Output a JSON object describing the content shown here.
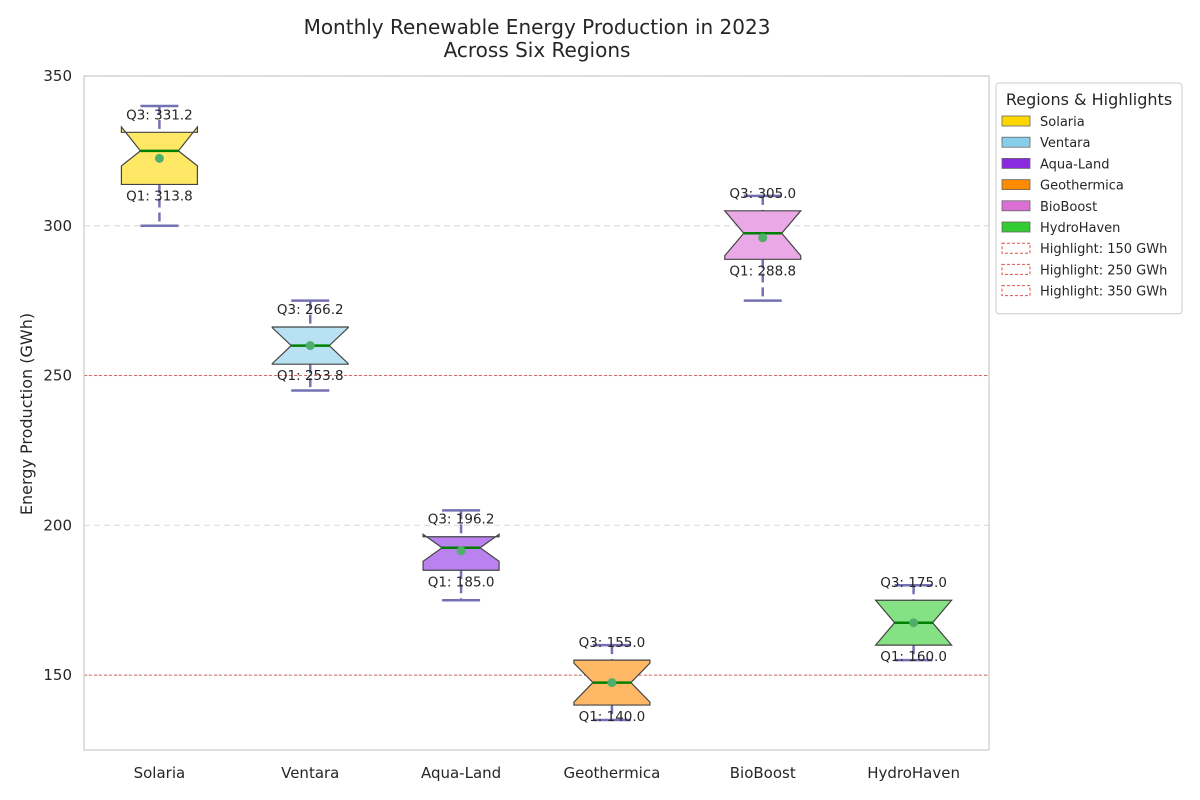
{
  "chart_data": {
    "type": "box",
    "title_line1": "Monthly Renewable Energy Production in 2023",
    "title_line2": "Across Six Regions",
    "xlabel": "",
    "ylabel": "Energy Production (GWh)",
    "ylim": [
      125,
      350
    ],
    "yticks": [
      "150",
      "200",
      "250",
      "300",
      "350"
    ],
    "ytick_values": [
      150,
      200,
      250,
      300,
      350
    ],
    "grid": true,
    "highlight_lines": [
      150,
      250,
      350
    ],
    "categories": [
      "Solaria",
      "Ventara",
      "Aqua-Land",
      "Geothermica",
      "BioBoost",
      "HydroHaven"
    ],
    "boxes": [
      {
        "name": "Solaria",
        "color": "#FFD700",
        "fill": "#FFE866",
        "whisker_low": 300,
        "q1": 313.8,
        "median": 325,
        "mean": 322.5,
        "q3": 331.2,
        "whisker_high": 340,
        "notch_low": 320,
        "notch_high": 333,
        "q1_label": "Q1: 313.8",
        "q3_label": "Q3: 331.2"
      },
      {
        "name": "Ventara",
        "color": "#87CEEB",
        "fill": "#B8E2F3",
        "whisker_low": 245,
        "q1": 253.8,
        "median": 260,
        "mean": 260,
        "q3": 266.2,
        "whisker_high": 275,
        "notch_low": 254,
        "notch_high": 266,
        "q1_label": "Q1: 253.8",
        "q3_label": "Q3: 266.2"
      },
      {
        "name": "Aqua-Land",
        "color": "#8A2BE2",
        "fill": "#B982EE",
        "whisker_low": 175,
        "q1": 185.0,
        "median": 192.5,
        "mean": 191.5,
        "q3": 196.2,
        "whisker_high": 205,
        "notch_low": 188,
        "notch_high": 197,
        "q1_label": "Q1: 185.0",
        "q3_label": "Q3: 196.2"
      },
      {
        "name": "Geothermica",
        "color": "#FF8C00",
        "fill": "#FFB866",
        "whisker_low": 135,
        "q1": 140.0,
        "median": 147.5,
        "mean": 147.5,
        "q3": 155.0,
        "whisker_high": 160,
        "notch_low": 141,
        "notch_high": 154,
        "q1_label": "Q1: 140.0",
        "q3_label": "Q3: 155.0"
      },
      {
        "name": "BioBoost",
        "color": "#DA70D6",
        "fill": "#EAA9E6",
        "whisker_low": 275,
        "q1": 288.8,
        "median": 297.5,
        "mean": 296,
        "q3": 305.0,
        "whisker_high": 310,
        "notch_low": 290,
        "notch_high": 305,
        "q1_label": "Q1: 288.8",
        "q3_label": "Q3: 305.0"
      },
      {
        "name": "HydroHaven",
        "color": "#32CD32",
        "fill": "#84E184",
        "whisker_low": 155,
        "q1": 160.0,
        "median": 167.5,
        "mean": 167.5,
        "q3": 175.0,
        "whisker_high": 180,
        "notch_low": 160,
        "notch_high": 175,
        "q1_label": "Q1: 160.0",
        "q3_label": "Q3: 175.0"
      }
    ],
    "colors": {
      "whisker": "#7570B3",
      "median": "#008000",
      "mean": "#4DAF6A",
      "highlight": "#D9534F",
      "grid": "#DDDDDD",
      "box_edge": "#444444"
    },
    "legend": {
      "title": "Regions & Highlights",
      "placement": "outside-top-right",
      "items": [
        {
          "label": "Solaria",
          "kind": "patch",
          "color": "#FFD700"
        },
        {
          "label": "Ventara",
          "kind": "patch",
          "color": "#87CEEB"
        },
        {
          "label": "Aqua-Land",
          "kind": "patch",
          "color": "#8A2BE2"
        },
        {
          "label": "Geothermica",
          "kind": "patch",
          "color": "#FF8C00"
        },
        {
          "label": "BioBoost",
          "kind": "patch",
          "color": "#DA70D6"
        },
        {
          "label": "HydroHaven",
          "kind": "patch",
          "color": "#32CD32"
        },
        {
          "label": "Highlight: 150 GWh",
          "kind": "dashed",
          "color": "#D9534F"
        },
        {
          "label": "Highlight: 250 GWh",
          "kind": "dashed",
          "color": "#D9534F"
        },
        {
          "label": "Highlight: 350 GWh",
          "kind": "dashed",
          "color": "#D9534F"
        }
      ]
    }
  }
}
